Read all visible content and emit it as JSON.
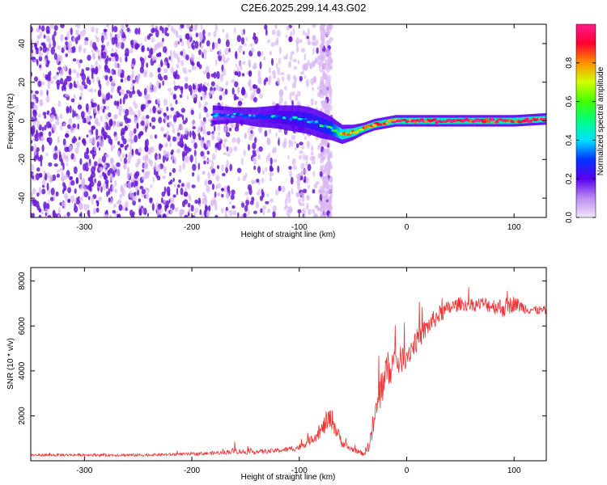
{
  "title": "C2E6.2025.299.14.43.G02",
  "colors": {
    "snr_line": "#ee3333",
    "speckle_dark": "#6a1bd6",
    "speckle_light": "#d9b8f2",
    "axes": "#000000"
  },
  "chart_data": [
    {
      "type": "heatmap",
      "xlabel": "Height of straight line (km)",
      "ylabel": "Frequency (Hz)",
      "xlim": [
        -350,
        130
      ],
      "ylim": [
        -50,
        50
      ],
      "xticks": [
        -300,
        -200,
        -100,
        0,
        100
      ],
      "xtick_labels": [
        "-300",
        "-200",
        "-100",
        "0",
        "100"
      ],
      "yticks": [
        -40,
        -20,
        0,
        20,
        40
      ],
      "ytick_labels": [
        "-40",
        "-20",
        "0",
        "20",
        "40"
      ],
      "colorbar": {
        "label": "Normalized spectral amplitude",
        "range": [
          0.0,
          1.0
        ],
        "ticks": [
          0.0,
          0.2,
          0.4,
          0.6,
          0.8
        ],
        "tick_labels": [
          "0.0",
          "0.2",
          "0.4",
          "0.6",
          "0.8"
        ],
        "stops": [
          {
            "v": 0.0,
            "color": "#f2e6fb"
          },
          {
            "v": 0.1,
            "color": "#b98cf0"
          },
          {
            "v": 0.2,
            "color": "#5a00f0"
          },
          {
            "v": 0.3,
            "color": "#0033ff"
          },
          {
            "v": 0.4,
            "color": "#00e0ff"
          },
          {
            "v": 0.5,
            "color": "#00ff80"
          },
          {
            "v": 0.6,
            "color": "#40ff00"
          },
          {
            "v": 0.7,
            "color": "#d0ff00"
          },
          {
            "v": 0.8,
            "color": "#ff9000"
          },
          {
            "v": 0.9,
            "color": "#ff0030"
          },
          {
            "v": 1.0,
            "color": "#ff1c8c"
          }
        ]
      },
      "signal_track": {
        "description": "main carrier trace",
        "x": [
          -180,
          -160,
          -140,
          -120,
          -100,
          -90,
          -80,
          -70,
          -60,
          -50,
          -40,
          -30,
          -20,
          -10,
          0,
          20,
          50,
          80,
          100,
          130
        ],
        "freq": [
          3,
          3,
          2,
          2,
          1,
          0,
          -2,
          -4,
          -7,
          -6,
          -4,
          -2,
          -1,
          0,
          0,
          0,
          0,
          0,
          0,
          1
        ],
        "spread": [
          5,
          4,
          5,
          6,
          7,
          7,
          7,
          6,
          5,
          4,
          3,
          3,
          3,
          3,
          3,
          3,
          3,
          3,
          3,
          3
        ],
        "amplitude": [
          0.25,
          0.3,
          0.3,
          0.33,
          0.38,
          0.4,
          0.42,
          0.5,
          0.7,
          0.75,
          0.78,
          0.8,
          0.85,
          0.88,
          0.9,
          0.92,
          0.95,
          0.95,
          0.93,
          0.9
        ]
      },
      "noise_region": {
        "dense_x_range": [
          -350,
          -110
        ],
        "sparse_x_range": [
          -110,
          -70
        ],
        "scattered_column_x": [
          -80,
          -70
        ]
      }
    },
    {
      "type": "line",
      "xlabel": "Height of straight line (km)",
      "ylabel": "SNR (10 * v/v)",
      "xlim": [
        -350,
        130
      ],
      "ylim": [
        0,
        8600
      ],
      "xticks": [
        -300,
        -200,
        -100,
        0,
        100
      ],
      "xtick_labels": [
        "-300",
        "-200",
        "-100",
        "0",
        "100"
      ],
      "yticks": [
        2000,
        4000,
        6000,
        8000
      ],
      "ytick_labels": [
        "2000",
        "4000",
        "6000",
        "8000"
      ],
      "series": [
        {
          "name": "SNR",
          "x": [
            -350,
            -300,
            -250,
            -200,
            -170,
            -160,
            -150,
            -130,
            -110,
            -100,
            -90,
            -80,
            -75,
            -70,
            -65,
            -60,
            -55,
            -50,
            -45,
            -40,
            -35,
            -30,
            -25,
            -20,
            -15,
            -10,
            -5,
            0,
            10,
            20,
            30,
            40,
            50,
            60,
            70,
            80,
            90,
            100,
            110,
            120,
            130
          ],
          "y": [
            250,
            260,
            250,
            300,
            360,
            450,
            380,
            420,
            500,
            600,
            900,
            1300,
            1700,
            1900,
            1300,
            800,
            600,
            500,
            400,
            300,
            700,
            1800,
            3000,
            3900,
            4200,
            4400,
            4500,
            4700,
            5400,
            6000,
            6500,
            6800,
            7000,
            6900,
            7000,
            6900,
            6800,
            7000,
            6800,
            6700,
            6700
          ],
          "noise": [
            60,
            60,
            60,
            70,
            90,
            140,
            100,
            100,
            120,
            150,
            200,
            300,
            500,
            500,
            350,
            200,
            150,
            120,
            100,
            100,
            300,
            700,
            900,
            900,
            800,
            700,
            600,
            600,
            500,
            450,
            400,
            350,
            300,
            300,
            300,
            350,
            450,
            350,
            250,
            200,
            200
          ]
        }
      ]
    }
  ]
}
